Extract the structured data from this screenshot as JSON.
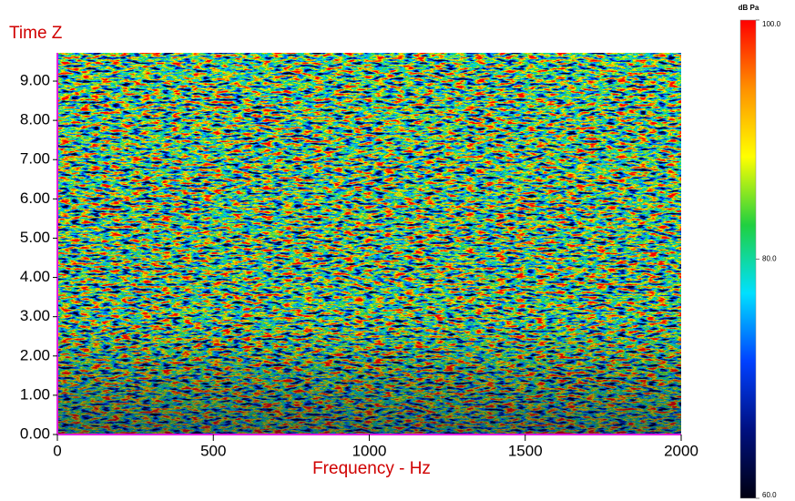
{
  "chart_data": {
    "type": "heatmap",
    "ylabel": "Time Z",
    "xlabel": "Frequency - Hz",
    "xlim": [
      0,
      2000
    ],
    "xticks": [
      0,
      500,
      1000,
      1500,
      2000
    ],
    "ylim": [
      0,
      9.72
    ],
    "yticks": [
      {
        "value": 0,
        "label": "0.00"
      },
      {
        "value": 1,
        "label": "1.00"
      },
      {
        "value": 2,
        "label": "2.00"
      },
      {
        "value": 3,
        "label": "3.00"
      },
      {
        "value": 4,
        "label": "4.00"
      },
      {
        "value": 5,
        "label": "5.00"
      },
      {
        "value": 6,
        "label": "6.00"
      },
      {
        "value": 7,
        "label": "7.00"
      },
      {
        "value": 8,
        "label": "8.00"
      },
      {
        "value": 9,
        "label": "9.00"
      }
    ],
    "axis_color": "#e020e0",
    "colorbar": {
      "title": "dB Pa",
      "lim": [
        60,
        100
      ],
      "ticks": [
        {
          "value": 60,
          "label": "60.0"
        },
        {
          "value": 80,
          "label": "80.0"
        },
        {
          "value": 100,
          "label": "100.0"
        }
      ],
      "colors": [
        "#000010",
        "#001080",
        "#0040ff",
        "#00e0ff",
        "#20d040",
        "#ffff00",
        "#ff9000",
        "#ff0000"
      ]
    }
  }
}
